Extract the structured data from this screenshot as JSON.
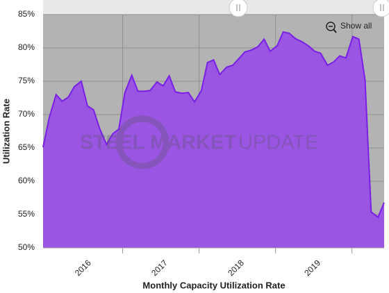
{
  "chart_data": {
    "type": "area",
    "x_title": "Monthly Capacity Utilization Rate",
    "y_title": "Utilization Rate",
    "reset_button": "Show all",
    "watermark_bold": "STEEL MARKET",
    "watermark_light": "UPDATE",
    "x": [
      2015.96,
      2016.04,
      2016.13,
      2016.21,
      2016.29,
      2016.37,
      2016.46,
      2016.54,
      2016.62,
      2016.7,
      2016.79,
      2016.87,
      2016.95,
      2017.03,
      2017.12,
      2017.2,
      2017.28,
      2017.36,
      2017.45,
      2017.53,
      2017.61,
      2017.69,
      2017.78,
      2017.86,
      2017.94,
      2018.03,
      2018.11,
      2018.19,
      2018.27,
      2018.36,
      2018.44,
      2018.52,
      2018.6,
      2018.69,
      2018.77,
      2018.85,
      2018.93,
      2019.02,
      2019.1,
      2019.18,
      2019.26,
      2019.35,
      2019.43,
      2019.51,
      2019.59,
      2019.68,
      2019.76,
      2019.84,
      2019.92,
      2020.01,
      2020.09,
      2020.17,
      2020.25,
      2020.34,
      2020.42
    ],
    "series": [
      {
        "name": "Utilization Rate",
        "color": "#7a1fe6",
        "fill": "#9a55e3",
        "values": [
          65.1,
          69.5,
          73.0,
          72.0,
          72.6,
          74.2,
          75.0,
          71.3,
          70.7,
          67.9,
          65.5,
          67.1,
          67.8,
          73.3,
          75.9,
          73.5,
          73.5,
          73.6,
          74.9,
          74.3,
          75.8,
          73.4,
          73.2,
          73.3,
          71.9,
          73.6,
          77.8,
          78.2,
          76.0,
          77.1,
          77.4,
          78.4,
          79.4,
          79.7,
          80.2,
          81.3,
          79.5,
          80.3,
          82.4,
          82.2,
          81.4,
          80.9,
          80.3,
          79.5,
          79.2,
          77.4,
          77.9,
          78.8,
          78.5,
          81.7,
          81.3,
          75.2,
          55.4,
          54.6,
          56.8
        ]
      }
    ],
    "xlim": [
      2015.96,
      2020.42
    ],
    "xticks": [
      {
        "value": 2016.5,
        "label": "2016"
      },
      {
        "value": 2017.5,
        "label": "2017"
      },
      {
        "value": 2018.5,
        "label": "2018"
      },
      {
        "value": 2019.5,
        "label": "2019"
      }
    ],
    "xgrid": [
      2017,
      2018,
      2019,
      2020
    ],
    "ylim": [
      50,
      85
    ],
    "yticks": [
      {
        "value": 50,
        "label": "50%"
      },
      {
        "value": 55,
        "label": "55%"
      },
      {
        "value": 60,
        "label": "60%"
      },
      {
        "value": 65,
        "label": "65%"
      },
      {
        "value": 70,
        "label": "70%"
      },
      {
        "value": 75,
        "label": "75%"
      },
      {
        "value": 80,
        "label": "80%"
      },
      {
        "value": 85,
        "label": "85%"
      }
    ],
    "grid": true,
    "background": "#b3b3b3"
  }
}
